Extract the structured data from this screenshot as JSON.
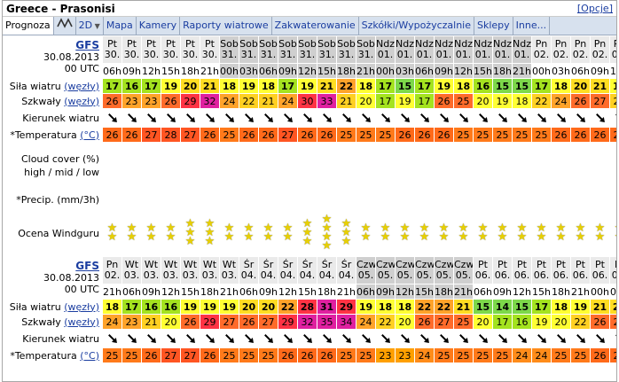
{
  "title": "Greece - Prasonisi",
  "options_link": "[Opcje]",
  "tabs": [
    "Prognoza",
    "2D",
    "Mapa",
    "Kamery",
    "Raporty wiatrowe",
    "Zakwaterowanie",
    "Szkółki/Wypożyczalnie",
    "Sklepy",
    "Inne..."
  ],
  "labels": {
    "model": "GFS",
    "model_date": "30.08.2013",
    "model_run": "00 UTC",
    "wind": "Siła wiatru",
    "gust": "Szkwały",
    "unit_wind": "(węzły)",
    "direction": "Kierunek wiatru",
    "temp": "*Temperatura",
    "unit_temp": "(°C)",
    "cloud_line1": "Cloud cover (%)",
    "cloud_line2": "high / mid / low",
    "precip": "*Precip. (mm/3h)",
    "rating": "Ocena Windguru"
  },
  "blocks": [
    {
      "days": [
        "Pt",
        "Pt",
        "Pt",
        "Pt",
        "Pt",
        "Pt",
        "Sob",
        "Sob",
        "Sob",
        "Sob",
        "Sob",
        "Sob",
        "Sob",
        "Sob",
        "Ndz",
        "Ndz",
        "Ndz",
        "Ndz",
        "Ndz",
        "Ndz",
        "Ndz",
        "Ndz",
        "Pn",
        "Pn",
        "Pn",
        "Pn",
        "Pn"
      ],
      "dates": [
        "30.",
        "30.",
        "30.",
        "30.",
        "30.",
        "30.",
        "31.",
        "31.",
        "31.",
        "31.",
        "31.",
        "31.",
        "31.",
        "31.",
        "01.",
        "01.",
        "01.",
        "01.",
        "01.",
        "01.",
        "01.",
        "01.",
        "02.",
        "02.",
        "02.",
        "02.",
        "02."
      ],
      "hours": [
        "06h",
        "09h",
        "12h",
        "15h",
        "18h",
        "21h",
        "00h",
        "03h",
        "06h",
        "09h",
        "12h",
        "15h",
        "18h",
        "21h",
        "00h",
        "03h",
        "06h",
        "09h",
        "12h",
        "15h",
        "18h",
        "21h",
        "00h",
        "03h",
        "06h",
        "09h",
        "12h"
      ],
      "wind": [
        17,
        16,
        17,
        19,
        20,
        21,
        18,
        19,
        18,
        17,
        19,
        21,
        22,
        18,
        17,
        15,
        17,
        19,
        18,
        16,
        15,
        15,
        17,
        18,
        20,
        21,
        18
      ],
      "gust": [
        26,
        23,
        23,
        26,
        29,
        32,
        24,
        22,
        21,
        24,
        30,
        33,
        21,
        20,
        17,
        19,
        17,
        26,
        25,
        20,
        19,
        18,
        22,
        24,
        26,
        27,
        22
      ],
      "dir_deg": [
        135,
        135,
        135,
        135,
        135,
        135,
        135,
        135,
        135,
        135,
        135,
        135,
        135,
        135,
        135,
        135,
        135,
        135,
        135,
        135,
        135,
        135,
        135,
        135,
        135,
        135,
        135
      ],
      "temp": [
        26,
        26,
        27,
        28,
        27,
        26,
        25,
        26,
        26,
        27,
        26,
        26,
        25,
        25,
        25,
        26,
        26,
        26,
        25,
        25,
        25,
        25,
        25,
        26,
        26,
        26,
        26
      ],
      "rating": [
        2,
        2,
        2,
        2,
        3,
        3,
        2,
        2,
        2,
        2,
        3,
        4,
        3,
        2,
        2,
        2,
        2,
        2,
        2,
        2,
        2,
        2,
        2,
        2,
        2,
        2,
        2
      ]
    },
    {
      "days": [
        "Pn",
        "Wt",
        "Wt",
        "Wt",
        "Wt",
        "Wt",
        "Wt",
        "Śr",
        "Śr",
        "Śr",
        "Śr",
        "Śr",
        "Śr",
        "Czw",
        "Czw",
        "Czw",
        "Czw",
        "Czw",
        "Czw",
        "Pt",
        "Pt",
        "Pt",
        "Pt",
        "Pt",
        "Pt",
        "Pt",
        "Pt"
      ],
      "dates": [
        "02.",
        "03.",
        "03.",
        "03.",
        "03.",
        "03.",
        "03.",
        "04.",
        "04.",
        "04.",
        "04.",
        "04.",
        "04.",
        "05.",
        "05.",
        "05.",
        "05.",
        "05.",
        "05.",
        "06.",
        "06.",
        "06.",
        "06.",
        "06.",
        "06.",
        "06.",
        "06."
      ],
      "hours": [
        "21h",
        "06h",
        "09h",
        "12h",
        "15h",
        "18h",
        "21h",
        "06h",
        "09h",
        "12h",
        "15h",
        "18h",
        "21h",
        "06h",
        "09h",
        "12h",
        "15h",
        "18h",
        "21h",
        "06h",
        "09h",
        "12h",
        "15h",
        "18h",
        "21h",
        "00h",
        "03h"
      ],
      "wind": [
        18,
        17,
        16,
        16,
        19,
        19,
        19,
        20,
        20,
        22,
        28,
        31,
        29,
        19,
        18,
        18,
        22,
        22,
        21,
        15,
        14,
        15,
        17,
        18,
        19,
        21,
        20
      ],
      "gust": [
        24,
        23,
        21,
        20,
        26,
        29,
        27,
        26,
        27,
        29,
        32,
        35,
        34,
        24,
        22,
        20,
        26,
        27,
        25,
        20,
        17,
        16,
        19,
        20,
        22,
        26,
        25
      ],
      "dir_deg": [
        135,
        135,
        135,
        135,
        135,
        135,
        135,
        135,
        135,
        135,
        135,
        135,
        135,
        135,
        135,
        135,
        135,
        135,
        135,
        135,
        135,
        135,
        135,
        135,
        135,
        135,
        135
      ],
      "temp": [
        25,
        25,
        26,
        27,
        27,
        26,
        25,
        25,
        25,
        26,
        26,
        26,
        25,
        25,
        23,
        23,
        24,
        25,
        25,
        25,
        25,
        24,
        24,
        25,
        25,
        26,
        26
      ]
    }
  ]
}
